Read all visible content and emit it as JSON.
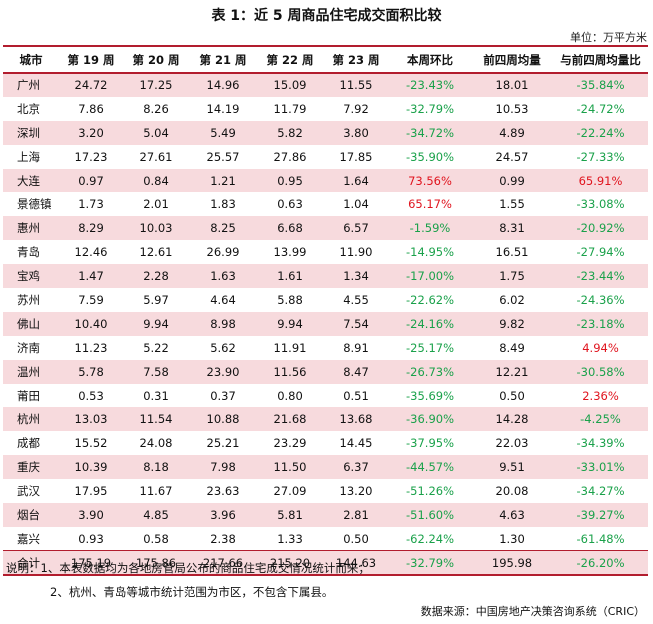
{
  "title": "表 1：近 5 周商品住宅成交面积比较",
  "unit": "单位：万平方米",
  "columns": [
    "城市",
    "第 19 周",
    "第 20 周",
    "第 21 周",
    "第 22 周",
    "第 23 周",
    "本周环比",
    "前四周均量",
    "与前四周均量比"
  ],
  "rows": [
    {
      "city": "广州",
      "w19": "24.72",
      "w20": "17.25",
      "w21": "14.96",
      "w22": "15.09",
      "w23": "11.55",
      "wow": "-23.43%",
      "avg4": "18.01",
      "vs_avg": "-35.84%",
      "shaded": true
    },
    {
      "city": "北京",
      "w19": "7.86",
      "w20": "8.26",
      "w21": "14.19",
      "w22": "11.79",
      "w23": "7.92",
      "wow": "-32.79%",
      "avg4": "10.53",
      "vs_avg": "-24.72%",
      "shaded": false
    },
    {
      "city": "深圳",
      "w19": "3.20",
      "w20": "5.04",
      "w21": "5.49",
      "w22": "5.82",
      "w23": "3.80",
      "wow": "-34.72%",
      "avg4": "4.89",
      "vs_avg": "-22.24%",
      "shaded": true
    },
    {
      "city": "上海",
      "w19": "17.23",
      "w20": "27.61",
      "w21": "25.57",
      "w22": "27.86",
      "w23": "17.85",
      "wow": "-35.90%",
      "avg4": "24.57",
      "vs_avg": "-27.33%",
      "shaded": false
    },
    {
      "city": "大连",
      "w19": "0.97",
      "w20": "0.84",
      "w21": "1.21",
      "w22": "0.95",
      "w23": "1.64",
      "wow": "73.56%",
      "avg4": "0.99",
      "vs_avg": "65.91%",
      "shaded": true
    },
    {
      "city": "景德镇",
      "w19": "1.73",
      "w20": "2.01",
      "w21": "1.83",
      "w22": "0.63",
      "w23": "1.04",
      "wow": "65.17%",
      "avg4": "1.55",
      "vs_avg": "-33.08%",
      "shaded": false
    },
    {
      "city": "惠州",
      "w19": "8.29",
      "w20": "10.03",
      "w21": "8.25",
      "w22": "6.68",
      "w23": "6.57",
      "wow": "-1.59%",
      "avg4": "8.31",
      "vs_avg": "-20.92%",
      "shaded": true
    },
    {
      "city": "青岛",
      "w19": "12.46",
      "w20": "12.61",
      "w21": "26.99",
      "w22": "13.99",
      "w23": "11.90",
      "wow": "-14.95%",
      "avg4": "16.51",
      "vs_avg": "-27.94%",
      "shaded": false
    },
    {
      "city": "宝鸡",
      "w19": "1.47",
      "w20": "2.28",
      "w21": "1.63",
      "w22": "1.61",
      "w23": "1.34",
      "wow": "-17.00%",
      "avg4": "1.75",
      "vs_avg": "-23.44%",
      "shaded": true
    },
    {
      "city": "苏州",
      "w19": "7.59",
      "w20": "5.97",
      "w21": "4.64",
      "w22": "5.88",
      "w23": "4.55",
      "wow": "-22.62%",
      "avg4": "6.02",
      "vs_avg": "-24.36%",
      "shaded": false
    },
    {
      "city": "佛山",
      "w19": "10.40",
      "w20": "9.94",
      "w21": "8.98",
      "w22": "9.94",
      "w23": "7.54",
      "wow": "-24.16%",
      "avg4": "9.82",
      "vs_avg": "-23.18%",
      "shaded": true
    },
    {
      "city": "济南",
      "w19": "11.23",
      "w20": "5.22",
      "w21": "5.62",
      "w22": "11.91",
      "w23": "8.91",
      "wow": "-25.17%",
      "avg4": "8.49",
      "vs_avg": "4.94%",
      "shaded": false
    },
    {
      "city": "温州",
      "w19": "5.78",
      "w20": "7.58",
      "w21": "23.90",
      "w22": "11.56",
      "w23": "8.47",
      "wow": "-26.73%",
      "avg4": "12.21",
      "vs_avg": "-30.58%",
      "shaded": true
    },
    {
      "city": "莆田",
      "w19": "0.53",
      "w20": "0.31",
      "w21": "0.37",
      "w22": "0.80",
      "w23": "0.51",
      "wow": "-35.69%",
      "avg4": "0.50",
      "vs_avg": "2.36%",
      "shaded": false
    },
    {
      "city": "杭州",
      "w19": "13.03",
      "w20": "11.54",
      "w21": "10.88",
      "w22": "21.68",
      "w23": "13.68",
      "wow": "-36.90%",
      "avg4": "14.28",
      "vs_avg": "-4.25%",
      "shaded": true
    },
    {
      "city": "成都",
      "w19": "15.52",
      "w20": "24.08",
      "w21": "25.21",
      "w22": "23.29",
      "w23": "14.45",
      "wow": "-37.95%",
      "avg4": "22.03",
      "vs_avg": "-34.39%",
      "shaded": false
    },
    {
      "city": "重庆",
      "w19": "10.39",
      "w20": "8.18",
      "w21": "7.98",
      "w22": "11.50",
      "w23": "6.37",
      "wow": "-44.57%",
      "avg4": "9.51",
      "vs_avg": "-33.01%",
      "shaded": true
    },
    {
      "city": "武汉",
      "w19": "17.95",
      "w20": "11.67",
      "w21": "23.63",
      "w22": "27.09",
      "w23": "13.20",
      "wow": "-51.26%",
      "avg4": "20.08",
      "vs_avg": "-34.27%",
      "shaded": false
    },
    {
      "city": "烟台",
      "w19": "3.90",
      "w20": "4.85",
      "w21": "3.96",
      "w22": "5.81",
      "w23": "2.81",
      "wow": "-51.60%",
      "avg4": "4.63",
      "vs_avg": "-39.27%",
      "shaded": true
    },
    {
      "city": "嘉兴",
      "w19": "0.93",
      "w20": "0.58",
      "w21": "2.38",
      "w22": "1.33",
      "w23": "0.50",
      "wow": "-62.24%",
      "avg4": "1.30",
      "vs_avg": "-61.48%",
      "shaded": false
    }
  ],
  "total": {
    "city": "合计",
    "w19": "175.19",
    "w20": "175.86",
    "w21": "217.66",
    "w22": "215.20",
    "w23": "144.63",
    "wow": "-32.79%",
    "avg4": "195.98",
    "vs_avg": "-26.20%",
    "shaded": true
  },
  "notes": [
    "说明：1、本表数据均为各地房管局公布的商品住宅成交情况统计而来；",
    "2、杭州、青岛等城市统计范围为市区，不包含下属县。"
  ],
  "source": "数据来源：中国房地产决策咨询系统（CRIC）",
  "colors": {
    "accent_rule": "#b21d2e",
    "row_shade": "#f7dadd",
    "increase": "#e0141e",
    "decrease": "#1aa14a"
  }
}
